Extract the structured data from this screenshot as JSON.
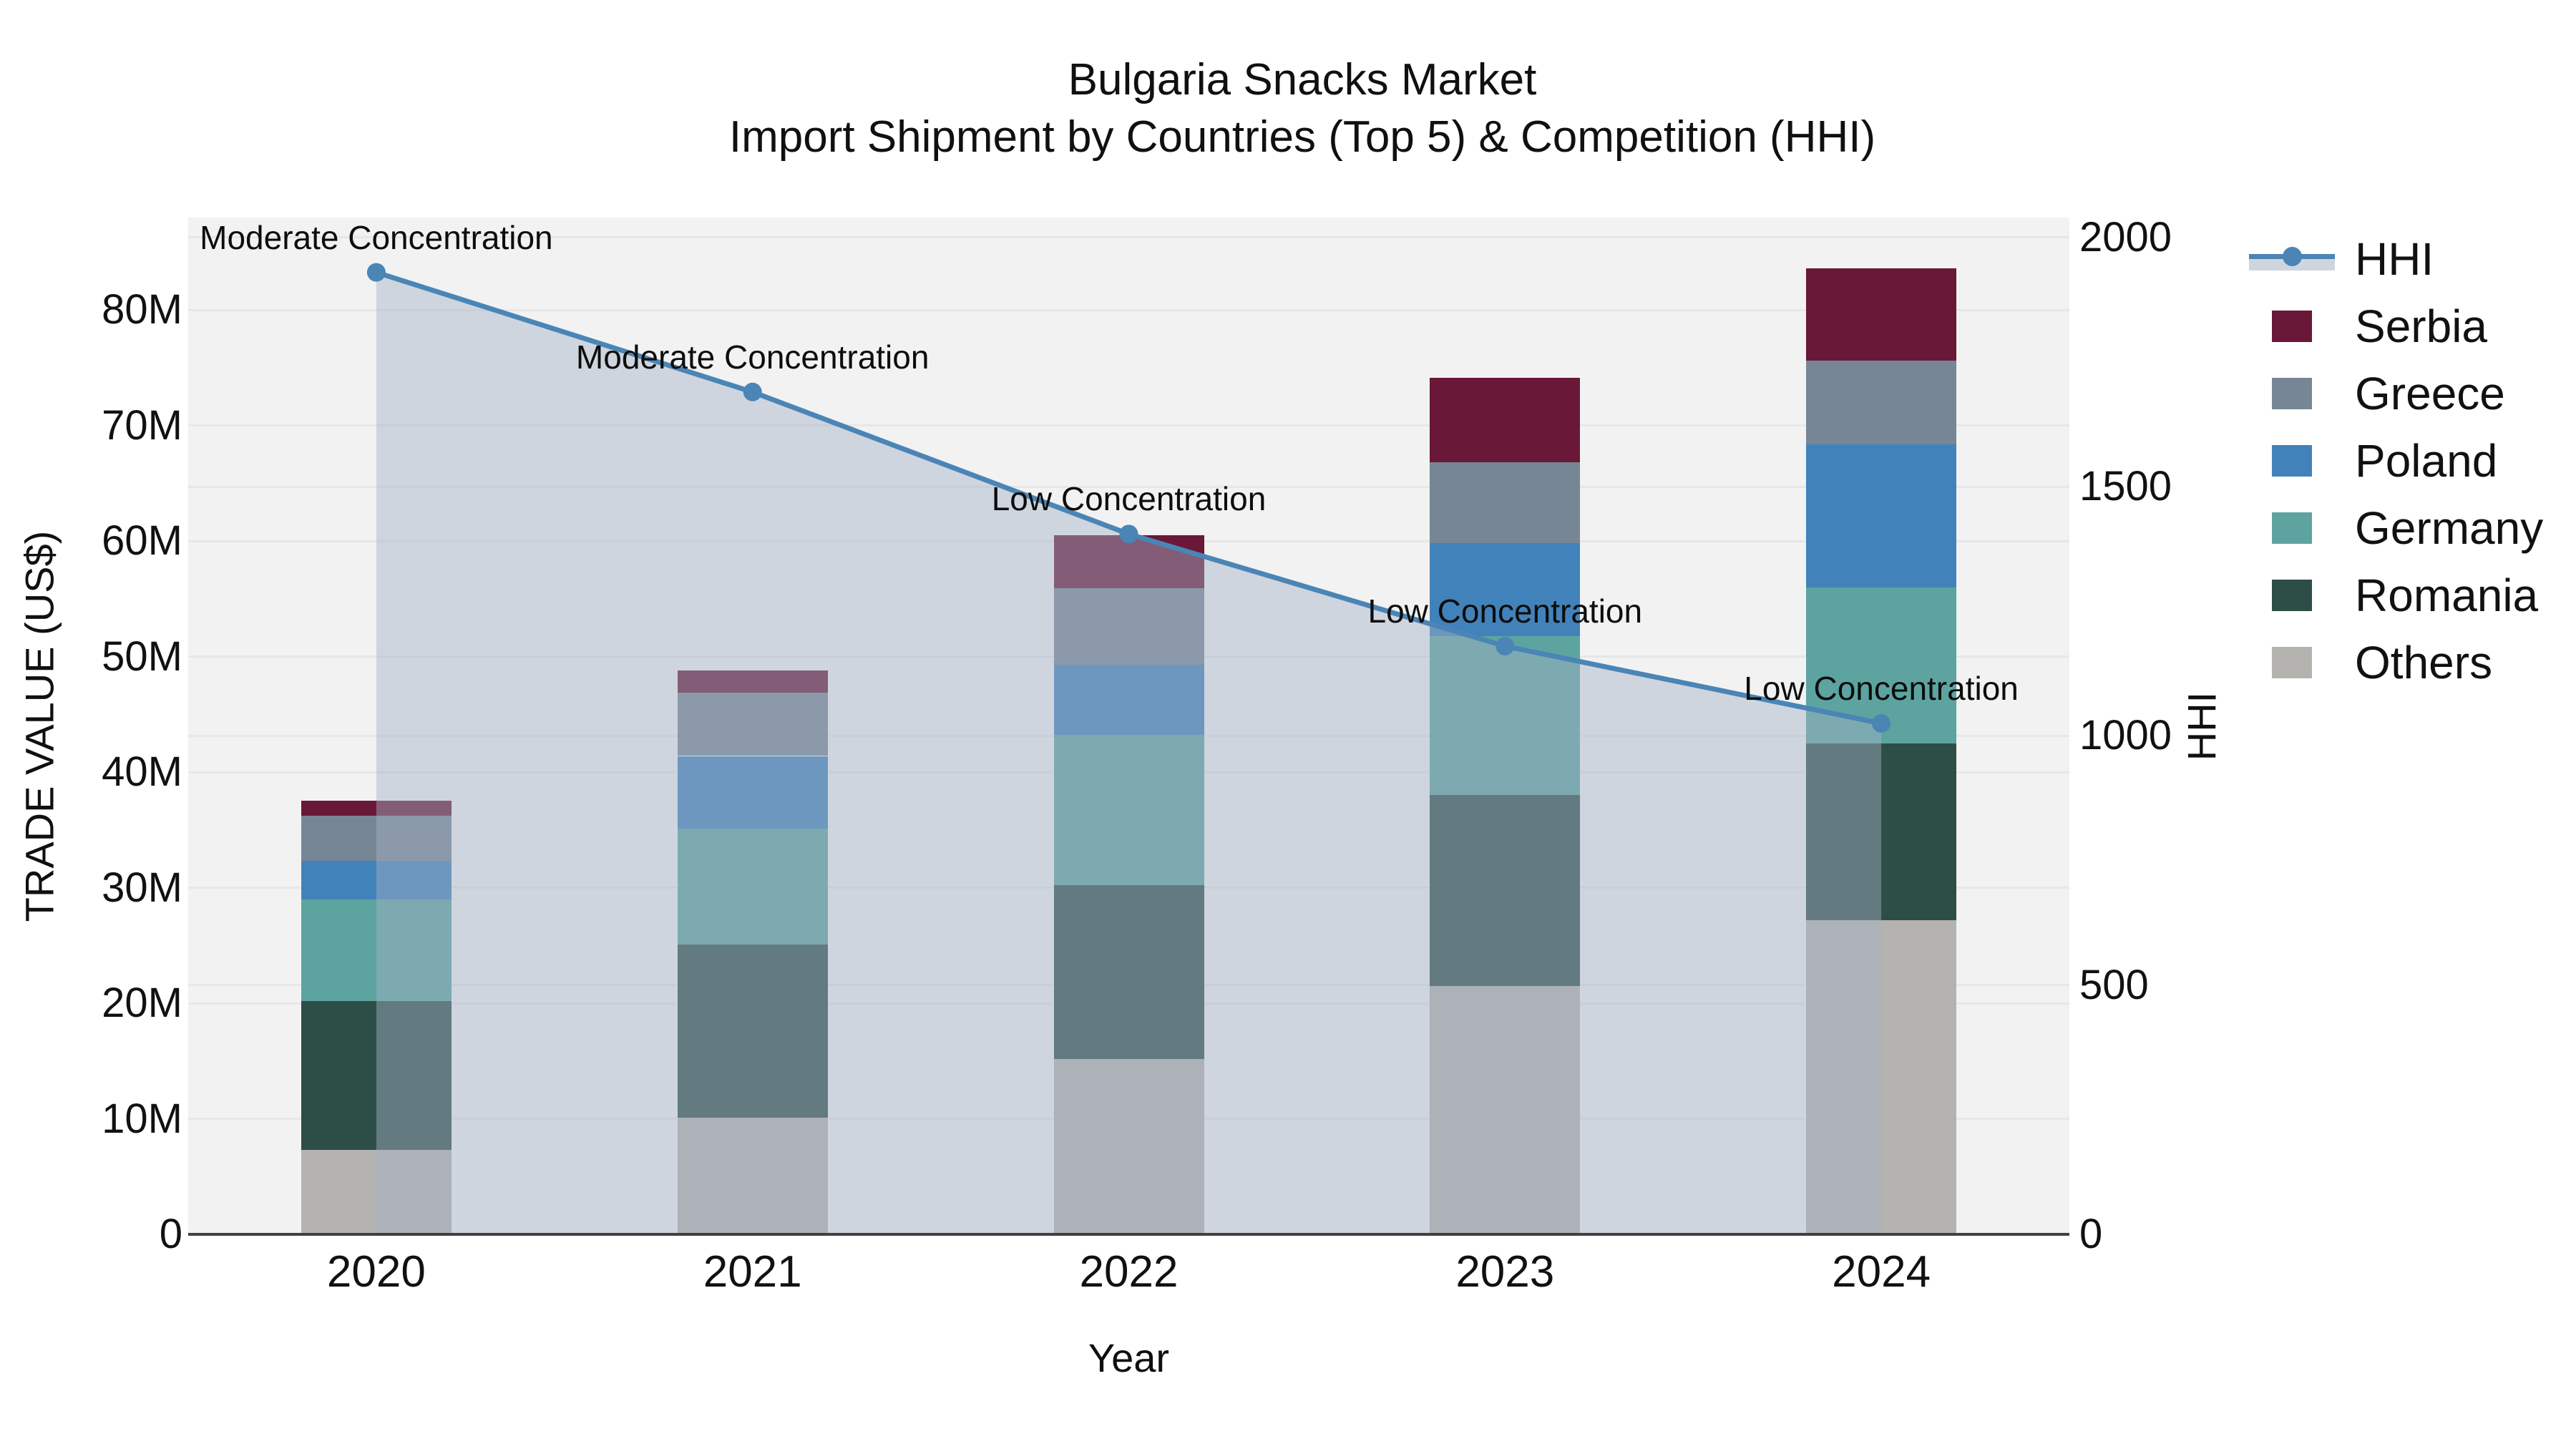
{
  "title": {
    "line1": "Bulgaria Snacks Market",
    "line2": "Import Shipment by Countries (Top 5) & Competition (HHI)"
  },
  "axes": {
    "left_title": "TRADE VALUE (US$)",
    "bottom_title": "Year",
    "right_title": "HHI",
    "left_tick_labels": [
      "0",
      "10M",
      "20M",
      "30M",
      "40M",
      "50M",
      "60M",
      "70M",
      "80M"
    ],
    "left_tick_values_millions": [
      0,
      10,
      20,
      30,
      40,
      50,
      60,
      70,
      80
    ],
    "right_tick_labels": [
      "0",
      "500",
      "1000",
      "1500",
      "2000"
    ],
    "right_tick_values": [
      0,
      500,
      1000,
      1500,
      2000
    ]
  },
  "legend": {
    "items": [
      {
        "label": "HHI",
        "type": "line",
        "color": "#4a85b6"
      },
      {
        "label": "Serbia",
        "type": "swatch",
        "color": "#691837"
      },
      {
        "label": "Greece",
        "type": "swatch",
        "color": "#778695"
      },
      {
        "label": "Poland",
        "type": "swatch",
        "color": "#4282ba"
      },
      {
        "label": "Germany",
        "type": "swatch",
        "color": "#5da4a0"
      },
      {
        "label": "Romania",
        "type": "swatch",
        "color": "#2d4d47"
      },
      {
        "label": "Others",
        "type": "swatch",
        "color": "#b4b3b0"
      }
    ]
  },
  "chart_data": {
    "type": "bar",
    "stacked": true,
    "title": "Bulgaria Snacks Market — Import Shipment by Countries (Top 5) & Competition (HHI)",
    "xlabel": "Year",
    "ylabel": "TRADE VALUE (US$)",
    "ylabel_right": "HHI",
    "categories": [
      "2020",
      "2021",
      "2022",
      "2023",
      "2024"
    ],
    "value_unit": "million US$",
    "series": [
      {
        "name": "Serbia",
        "color": "#691837",
        "values": [
          1.3,
          1.9,
          4.6,
          7.3,
          8.0
        ]
      },
      {
        "name": "Greece",
        "color": "#778695",
        "values": [
          3.9,
          5.5,
          6.6,
          7.0,
          7.2
        ]
      },
      {
        "name": "Poland",
        "color": "#4282ba",
        "values": [
          3.3,
          6.3,
          6.1,
          8.0,
          12.4
        ]
      },
      {
        "name": "Germany",
        "color": "#5da4a0",
        "values": [
          8.8,
          10.0,
          13.0,
          13.8,
          13.5
        ]
      },
      {
        "name": "Romania",
        "color": "#2d4d47",
        "values": [
          12.9,
          15.0,
          15.0,
          16.5,
          15.3
        ]
      },
      {
        "name": "Others",
        "color": "#b4b3b0",
        "values": [
          7.3,
          10.1,
          15.2,
          21.5,
          27.2
        ]
      }
    ],
    "stack_order_bottom_to_top": [
      "Others",
      "Romania",
      "Germany",
      "Poland",
      "Greece",
      "Serbia"
    ],
    "bar_totals_millions": [
      37.5,
      48.8,
      60.5,
      74.1,
      83.6
    ],
    "line": {
      "name": "HHI",
      "axis": "right",
      "color": "#4a85b6",
      "fill": "#a3b2c6",
      "fill_opacity": 0.45,
      "values": [
        1930,
        1690,
        1405,
        1180,
        1025
      ]
    },
    "annotations": [
      {
        "category": "2020",
        "text": "Moderate Concentration"
      },
      {
        "category": "2021",
        "text": "Moderate Concentration"
      },
      {
        "category": "2022",
        "text": "Low Concentration"
      },
      {
        "category": "2023",
        "text": "Low Concentration"
      },
      {
        "category": "2024",
        "text": "Low Concentration"
      }
    ],
    "ylim_left_millions": [
      0,
      88
    ],
    "ylim_right": [
      0,
      2040
    ],
    "grid": true,
    "legend_position": "right-top",
    "plot_bg": "#f2f2f2",
    "grid_color": "#e7e7e7",
    "axis_line_color": "#404040"
  }
}
